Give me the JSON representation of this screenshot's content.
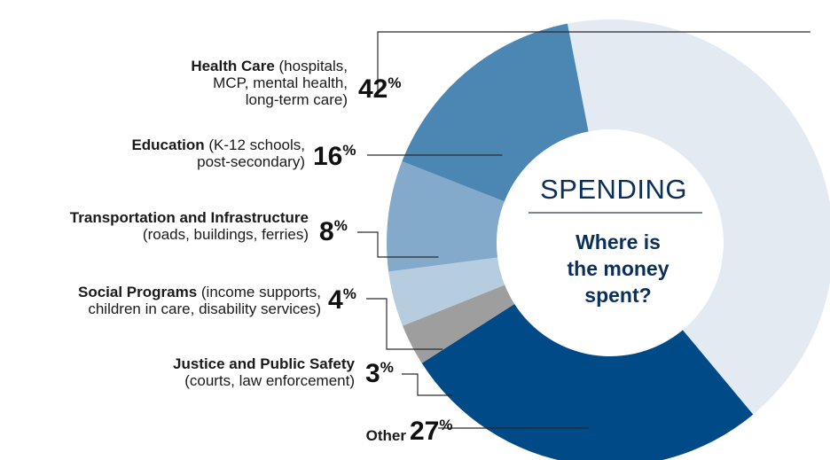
{
  "chart_data": {
    "type": "pie",
    "title": "SPENDING",
    "subtitle": "Where is the money spent?",
    "slices": [
      {
        "key": "health",
        "name": "Health Care",
        "detail": "(hospitals, MCP, mental health, long-term care)",
        "value": 42,
        "color": "#e3eaf2"
      },
      {
        "key": "other",
        "name": "Other",
        "detail": "",
        "value": 27,
        "color": "#004a87"
      },
      {
        "key": "justice",
        "name": "Justice and Public Safety",
        "detail": "(courts, law enforcement)",
        "value": 3,
        "color": "#9e9e9e"
      },
      {
        "key": "social",
        "name": "Social Programs",
        "detail": "(income supports, children in care, disability services)",
        "value": 4,
        "color": "#b6cde0"
      },
      {
        "key": "transport",
        "name": "Transportation and Infrastructure",
        "detail": "(roads, buildings, ferries)",
        "value": 8,
        "color": "#83aacb"
      },
      {
        "key": "education",
        "name": "Education",
        "detail": "(K-12 schools, post-secondary)",
        "value": 16,
        "color": "#4c86b3"
      }
    ]
  },
  "labels": {
    "health": {
      "name": "Health Care",
      "rest": " (hospitals,",
      "l2": "MCP, mental health,",
      "l3": "long-term care)",
      "pct": "42",
      "sign": "%"
    },
    "education": {
      "name": "Education",
      "rest": " (K-12 schools,",
      "l2": "post-secondary)",
      "pct": "16",
      "sign": "%"
    },
    "transport": {
      "name": "Transportation and Infrastructure",
      "l2": "(roads, buildings, ferries)",
      "pct": "8",
      "sign": "%"
    },
    "social": {
      "name": "Social Programs",
      "rest": " (income supports,",
      "l2": "children in care, disability services)",
      "pct": "4",
      "sign": "%"
    },
    "justice": {
      "name": "Justice and Public Safety",
      "l2": "(courts, law enforcement)",
      "pct": "3",
      "sign": "%"
    },
    "other": {
      "name": "Other",
      "pct": "27",
      "sign": "%"
    }
  },
  "center": {
    "title": "SPENDING",
    "line1": "Where is",
    "line2": "the money",
    "line3": "spent?"
  }
}
